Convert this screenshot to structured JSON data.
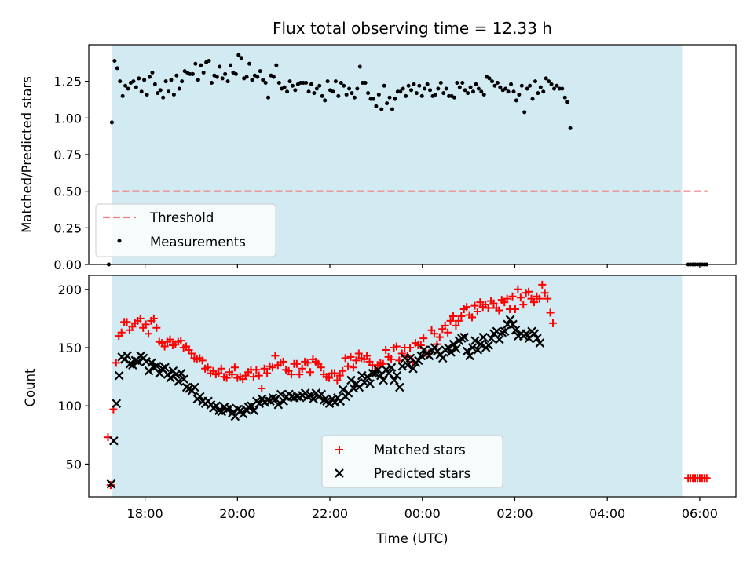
{
  "chart_data": {
    "type": "scatter",
    "title": "Flux total observing time = 12.33 h",
    "xlabel": "Time (UTC)",
    "xlim": [
      "16:47",
      "06:47"
    ],
    "x_ticks": [
      "18:00",
      "20:00",
      "22:00",
      "00:00",
      "02:00",
      "04:00",
      "06:00"
    ],
    "observing_window": {
      "start": "17:17",
      "end": "05:37",
      "color": "#add8e6"
    },
    "panels": [
      {
        "name": "ratio",
        "ylabel": "Matched/Predicted stars",
        "ylim": [
          0,
          1.5
        ],
        "y_ticks": [
          "0.00",
          "0.25",
          "0.50",
          "0.75",
          "1.00",
          "1.25"
        ],
        "grid": false,
        "legend": {
          "placement": "lower-left",
          "entries": [
            "Threshold",
            "Measurements"
          ]
        },
        "threshold": {
          "name": "Threshold",
          "value": 0.5,
          "x_start": "17:17",
          "x_end": "06:10",
          "color": "#f08080",
          "style": "dashed"
        },
        "series": [
          {
            "name": "Measurements",
            "marker": "dot",
            "color": "#000000",
            "x_start": "17:17",
            "step_minutes": 3.5,
            "values": [
              0.97,
              1.39,
              1.34,
              1.25,
              1.15,
              1.22,
              1.2,
              1.24,
              1.25,
              1.21,
              1.27,
              1.18,
              1.26,
              1.16,
              1.28,
              1.31,
              1.23,
              1.17,
              1.19,
              1.14,
              1.25,
              1.18,
              1.26,
              1.16,
              1.29,
              1.2,
              1.25,
              1.32,
              1.31,
              1.3,
              1.3,
              1.37,
              1.26,
              1.36,
              1.31,
              1.38,
              1.39,
              1.24,
              1.29,
              1.28,
              1.35,
              1.27,
              1.3,
              1.25,
              1.36,
              1.31,
              1.3,
              1.43,
              1.41,
              1.27,
              1.28,
              1.37,
              1.26,
              1.29,
              1.28,
              1.32,
              1.26,
              1.24,
              1.14,
              1.29,
              1.28,
              1.36,
              1.24,
              1.2,
              1.21,
              1.18,
              1.25,
              1.22,
              1.19,
              1.23,
              1.24,
              1.24,
              1.24,
              1.18,
              1.23,
              1.17,
              1.2,
              1.22,
              1.15,
              1.12,
              1.25,
              1.19,
              1.18,
              1.25,
              1.15,
              1.24,
              1.22,
              1.16,
              1.2,
              1.17,
              1.14,
              1.2,
              1.35,
              1.24,
              1.24,
              1.17,
              1.13,
              1.13,
              1.08,
              1.16,
              1.06,
              1.22,
              1.1,
              1.14,
              1.06,
              1.13,
              1.18,
              1.18,
              1.2,
              1.15,
              1.22,
              1.19,
              1.23,
              1.17,
              1.22,
              1.15,
              1.2,
              1.23,
              1.19,
              1.15,
              1.16,
              1.2,
              1.24,
              1.17,
              1.2,
              1.15,
              1.15,
              1.14,
              1.24,
              1.21,
              1.24,
              1.19,
              1.17,
              1.21,
              1.18,
              1.23,
              1.2,
              1.18,
              1.16,
              1.28,
              1.27,
              1.25,
              1.22,
              1.24,
              1.21,
              1.19,
              1.2,
              1.18,
              1.23,
              1.18,
              1.12,
              1.16,
              1.22,
              1.04,
              1.2,
              1.22,
              1.13,
              1.25,
              1.17,
              1.21,
              1.18,
              1.27,
              1.25,
              1.23,
              1.2,
              1.22,
              1.2,
              1.2,
              1.14,
              1.11,
              0.93
            ]
          },
          {
            "name": "Measurements (outside window)",
            "marker": "dot",
            "color": "#000000",
            "points": [
              [
                "17:13",
                0.0
              ],
              [
                "05:45",
                0.0
              ],
              [
                "05:48",
                0.0
              ],
              [
                "05:51",
                0.0
              ],
              [
                "05:54",
                0.0
              ],
              [
                "05:57",
                0.0
              ],
              [
                "06:00",
                0.0
              ],
              [
                "06:03",
                0.0
              ],
              [
                "06:06",
                0.0
              ],
              [
                "06:09",
                0.0
              ]
            ]
          }
        ]
      },
      {
        "name": "counts",
        "ylabel": "Count",
        "ylim": [
          22,
          212
        ],
        "y_ticks": [
          "50",
          "100",
          "150",
          "200"
        ],
        "grid": false,
        "legend": {
          "placement": "lower-center",
          "entries": [
            "Matched stars",
            "Predicted stars"
          ]
        },
        "series": [
          {
            "name": "Matched stars",
            "marker": "plus",
            "color": "#ff0000",
            "x_start": "17:12",
            "step_minutes": 3.5,
            "values": [
              73,
              32,
              97,
              137,
              160,
              163,
              172,
              172,
              165,
              168,
              171,
              173,
              175,
              167,
              170,
              162,
              173,
              175,
              167,
              155,
              154,
              151,
              155,
              157,
              152,
              153,
              155,
              156,
              150,
              151,
              148,
              145,
              141,
              140,
              141,
              139,
              132,
              133,
              128,
              130,
              127,
              128,
              132,
              125,
              124,
              129,
              127,
              133,
              124,
              125,
              123,
              126,
              129,
              131,
              125,
              131,
              126,
              115,
              132,
              128,
              134,
              133,
              143,
              135,
              137,
              138,
              131,
              130,
              127,
              136,
              136,
              127,
              132,
              138,
              137,
              129,
              140,
              138,
              136,
              133,
              127,
              125,
              124,
              128,
              128,
              122,
              126,
              130,
              141,
              134,
              142,
              133,
              139,
              145,
              141,
              140,
              143,
              138,
              135,
              130,
              135,
              137,
              136,
              148,
              142,
              140,
              150,
              151,
              139,
              145,
              150,
              143,
              150,
              138,
              154,
              152,
              152,
              158,
              145,
              145,
              165,
              162,
              153,
              159,
              166,
              169,
              163,
              173,
              177,
              169,
              173,
              177,
              183,
              185,
              178,
              176,
              186,
              181,
              189,
              185,
              187,
              184,
              190,
              188,
              184,
              182,
              191,
              189,
              192,
              183,
              194,
              183,
              200,
              193,
              187,
              197,
              198,
              192,
              189,
              194,
              192,
              204,
              197,
              192,
              180,
              171
            ],
            "extra_points": [
              [
                "05:45",
                38
              ],
              [
                "05:48",
                38
              ],
              [
                "05:51",
                38
              ],
              [
                "05:54",
                38
              ],
              [
                "05:57",
                38
              ],
              [
                "06:00",
                38
              ],
              [
                "06:03",
                38
              ],
              [
                "06:06",
                38
              ],
              [
                "06:09",
                38
              ]
            ]
          },
          {
            "name": "Predicted stars",
            "marker": "x",
            "color": "#000000",
            "x_start": "17:16",
            "step_minutes": 3.5,
            "values": [
              33,
              70,
              102,
              126,
              142,
              140,
              143,
              136,
              135,
              139,
              138,
              143,
              141,
              138,
              130,
              137,
              133,
              134,
              128,
              132,
              133,
              127,
              124,
              130,
              127,
              121,
              128,
              123,
              116,
              115,
              113,
              116,
              106,
              108,
              104,
              102,
              104,
              101,
              98,
              100,
              96,
              95,
              99,
              97,
              98,
              94,
              91,
              97,
              96,
              93,
              97,
              99,
              100,
              96,
              104,
              102,
              106,
              103,
              105,
              104,
              107,
              106,
              101,
              110,
              104,
              108,
              110,
              108,
              107,
              108,
              107,
              109,
              111,
              108,
              109,
              106,
              111,
              108,
              110,
              105,
              104,
              102,
              106,
              103,
              107,
              104,
              114,
              108,
              111,
              122,
              115,
              119,
              116,
              126,
              120,
              125,
              119,
              128,
              128,
              131,
              126,
              122,
              131,
              128,
              133,
              122,
              126,
              116,
              134,
              141,
              135,
              141,
              132,
              137,
              139,
              143,
              148,
              145,
              143,
              148,
              150,
              147,
              144,
              141,
              148,
              150,
              146,
              153,
              149,
              156,
              158,
              159,
              147,
              143,
              150,
              156,
              148,
              153,
              159,
              150,
              152,
              158,
              162,
              164,
              157,
              163,
              164,
              170,
              174,
              170,
              165,
              160,
              162,
              160,
              162,
              158,
              164,
              162,
              158,
              154
            ]
          }
        ]
      }
    ]
  }
}
